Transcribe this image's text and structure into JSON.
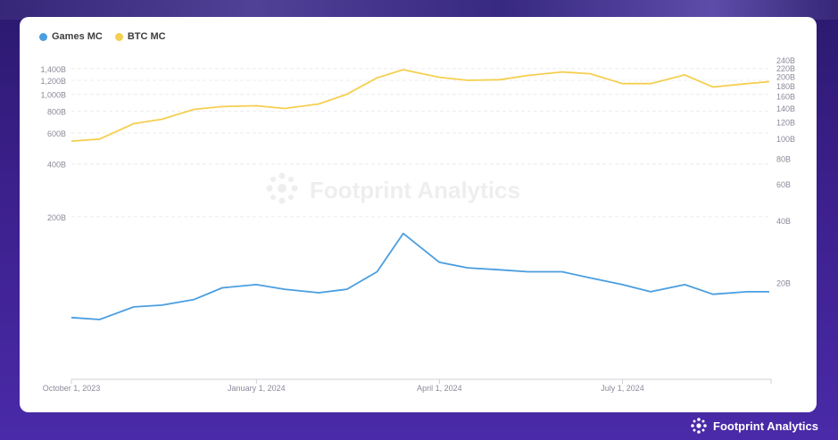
{
  "legend": [
    {
      "label": "Games MC",
      "color": "#4a9ee0"
    },
    {
      "label": "BTC MC",
      "color": "#f5cf4f"
    }
  ],
  "watermark": "Footprint Analytics",
  "brand": "Footprint Analytics",
  "chart_data": {
    "type": "line",
    "x": [
      "2023-10-01",
      "2023-10-15",
      "2023-11-01",
      "2023-11-15",
      "2023-12-01",
      "2023-12-15",
      "2024-01-01",
      "2024-01-15",
      "2024-02-01",
      "2024-02-15",
      "2024-03-01",
      "2024-03-14",
      "2024-04-01",
      "2024-04-15",
      "2024-05-01",
      "2024-05-15",
      "2024-06-01",
      "2024-06-15",
      "2024-07-01",
      "2024-07-15",
      "2024-08-01",
      "2024-08-15",
      "2024-09-01",
      "2024-09-12"
    ],
    "x_ticks": [
      "October 1, 2023",
      "January 1, 2024",
      "April 1, 2024",
      "July 1, 2024"
    ],
    "series": [
      {
        "name": "Games MC",
        "color": "#4a9ee0",
        "axis": "right",
        "values": [
          13.5,
          13.2,
          15.2,
          15.5,
          16.5,
          18.8,
          19.5,
          18.5,
          17.8,
          18.5,
          22.5,
          34.5,
          25.0,
          23.5,
          23.0,
          22.5,
          22.5,
          21.0,
          19.5,
          18.0,
          19.5,
          17.5,
          18.0,
          18.0
        ]
      },
      {
        "name": "BTC MC",
        "color": "#f5cf4f",
        "axis": "left",
        "values": [
          540,
          555,
          680,
          720,
          820,
          850,
          860,
          830,
          880,
          1000,
          1240,
          1380,
          1250,
          1200,
          1210,
          1280,
          1340,
          1310,
          1150,
          1150,
          1290,
          1100,
          1150,
          1180
        ]
      }
    ],
    "left_axis": {
      "ticks": [
        "1,400B",
        "1,200B",
        "1,000B",
        "800B",
        "600B",
        "400B",
        "200B"
      ],
      "values": [
        1400,
        1200,
        1000,
        800,
        600,
        400,
        200
      ],
      "scale": "log",
      "range": [
        100,
        1500
      ]
    },
    "right_axis": {
      "ticks": [
        "240B",
        "220B",
        "200B",
        "180B",
        "160B",
        "140B",
        "120B",
        "100B",
        "80B",
        "60B",
        "40B",
        "20B"
      ],
      "values": [
        240,
        220,
        200,
        180,
        160,
        140,
        120,
        100,
        80,
        60,
        40,
        20
      ],
      "scale": "log",
      "range": [
        9.5,
        245
      ]
    },
    "legend_position": "top-left",
    "grid": "horizontal dashed (upper)"
  }
}
